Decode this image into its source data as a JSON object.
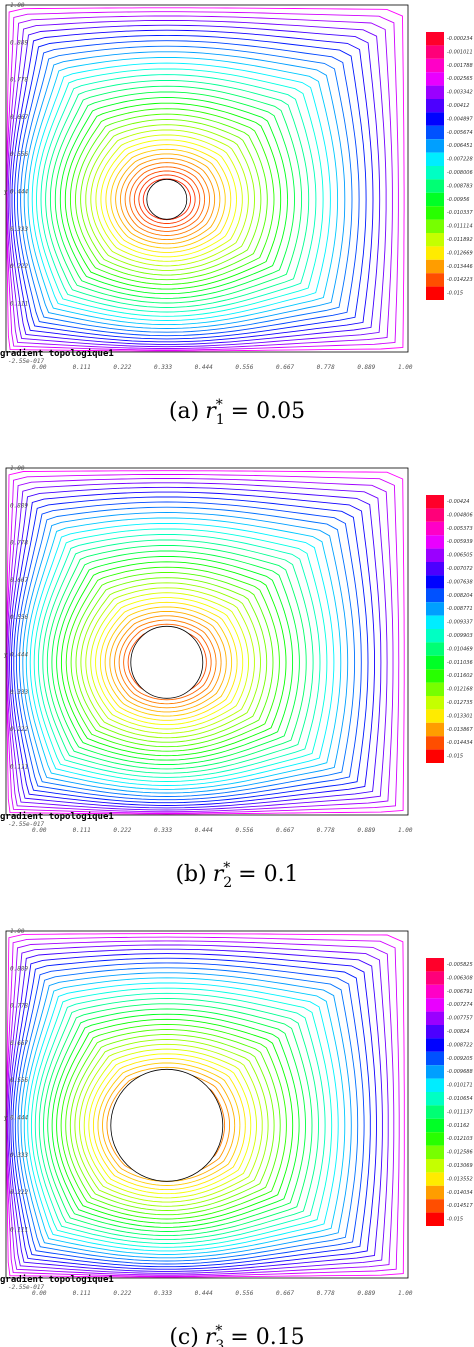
{
  "panels": [
    {
      "caption": {
        "label": "(a)",
        "var": "r",
        "sub": "1",
        "sup": "*",
        "value": "= 0.05"
      },
      "legend": [
        "-0.000234",
        "-0.001011",
        "-0.001788",
        "-0.002565",
        "-0.003342",
        "-0.00412",
        "-0.004897",
        "-0.005674",
        "-0.006451",
        "-0.007228",
        "-0.008006",
        "-0.008783",
        "-0.00956",
        "-0.010337",
        "-0.011114",
        "-0.011892",
        "-0.012669",
        "-0.013446",
        "-0.014223",
        "-0.015"
      ]
    },
    {
      "caption": {
        "label": "(b)",
        "var": "r",
        "sub": "2",
        "sup": "*",
        "value": "= 0.1"
      },
      "legend": [
        "-0.00424",
        "-0.004806",
        "-0.005373",
        "-0.005939",
        "-0.006505",
        "-0.007072",
        "-0.007638",
        "-0.008204",
        "-0.008771",
        "-0.009337",
        "-0.009903",
        "-0.010469",
        "-0.011036",
        "-0.011602",
        "-0.012168",
        "-0.012735",
        "-0.013301",
        "-0.013867",
        "-0.014434",
        "-0.015"
      ]
    },
    {
      "caption": {
        "label": "(c)",
        "var": "r",
        "sub": "3",
        "sup": "*",
        "value": "= 0.15"
      },
      "legend": [
        "-0.005825",
        "-0.006308",
        "-0.006791",
        "-0.007274",
        "-0.007757",
        "-0.00824",
        "-0.008722",
        "-0.009205",
        "-0.009688",
        "-0.010171",
        "-0.010654",
        "-0.011137",
        "-0.01162",
        "-0.012103",
        "-0.012586",
        "-0.013069",
        "-0.013552",
        "-0.014034",
        "-0.014517",
        "-0.015"
      ]
    }
  ],
  "plot_label": "gradient topologique1",
  "y_axis_label": "y",
  "origin_label": "-2.55e-017",
  "x_tick_labels": [
    "0.00",
    "0.111",
    "0.222",
    "0.333",
    "0.444",
    "0.556",
    "0.667",
    "0.778",
    "0.889",
    "1.00"
  ],
  "y_tick_labels": [
    "1.00",
    "0.889",
    "0.778",
    "0.667",
    "0.556",
    "0.444",
    "0.333",
    "0.222",
    "0.111"
  ]
}
